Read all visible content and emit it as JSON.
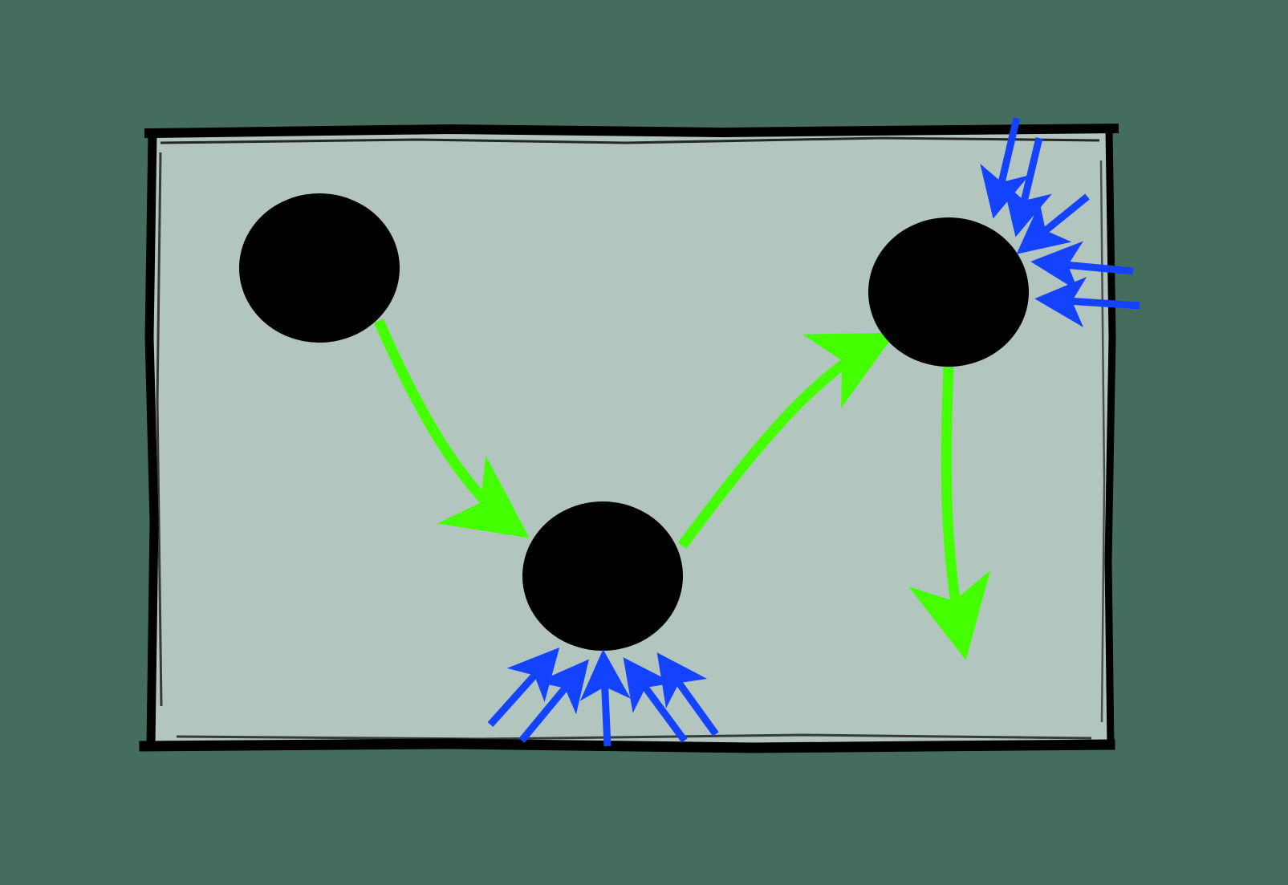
{
  "diagram": {
    "title": "",
    "colors": {
      "background": "#456d5e",
      "panel_fill": "#b3c5bf",
      "panel_border": "#000000",
      "node_fill": "#000000",
      "flow_arrow": "#44ff00",
      "force_arrow": "#1443ff"
    },
    "nodes": [
      {
        "id": "node-1"
      },
      {
        "id": "node-2"
      },
      {
        "id": "node-3"
      }
    ],
    "flow_arrows": [
      {
        "id": "flow-arrow-node1-to-node2",
        "from": "node-1",
        "to": "node-2"
      },
      {
        "id": "flow-arrow-node2-to-node3",
        "from": "node-2",
        "to": "node-3"
      },
      {
        "id": "flow-arrow-node3-outward",
        "from": "node-3",
        "to": "outside"
      }
    ],
    "force_arrow_groups": [
      {
        "id": "force-arrows-node2",
        "target": "node-2",
        "count": 5
      },
      {
        "id": "force-arrows-node3",
        "target": "node-3",
        "count": 5
      }
    ]
  }
}
